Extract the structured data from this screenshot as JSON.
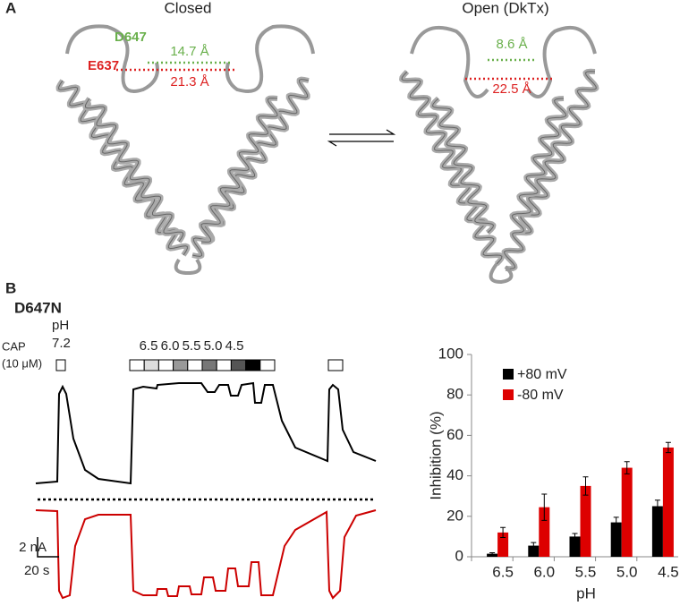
{
  "panel_a": {
    "label": "A",
    "closed_title": "Closed",
    "open_title": "Open (DkTx)",
    "closed_d647": "D647",
    "closed_e637": "E637",
    "closed_d_dist": "14.7 Å",
    "closed_e_dist": "21.3 Å",
    "open_d_dist": "8.6 Å",
    "open_e_dist": "22.5 Å"
  },
  "panel_b": {
    "label": "B",
    "construct": "D647N",
    "ph_label": "pH",
    "ph_start": "7.2",
    "cap_label": "CAP",
    "cap_conc": "(10 μM)",
    "ph_steps": [
      "6.5",
      "6.0",
      "5.5",
      "5.0",
      "4.5"
    ],
    "scale_current": "2 nA",
    "scale_time": "20 s"
  },
  "chart_data": {
    "type": "bar",
    "ylabel": "Inhibition (%)",
    "xlabel": "pH",
    "categories": [
      "6.5",
      "6.0",
      "5.5",
      "5.0",
      "4.5"
    ],
    "series": [
      {
        "name": "+80 mV",
        "color": "#000000",
        "values": [
          1.5,
          5.5,
          10,
          17,
          25
        ],
        "errors": [
          0.5,
          1.5,
          1.5,
          2.5,
          3
        ]
      },
      {
        "name": "-80 mV",
        "color": "#dd0000",
        "values": [
          12,
          24.5,
          35,
          44,
          54
        ],
        "errors": [
          2.5,
          6.5,
          4.5,
          3,
          2.5
        ]
      }
    ],
    "ylim": [
      0,
      100
    ],
    "yticks": [
      0,
      20,
      40,
      60,
      80,
      100
    ],
    "legend": "top-left"
  }
}
